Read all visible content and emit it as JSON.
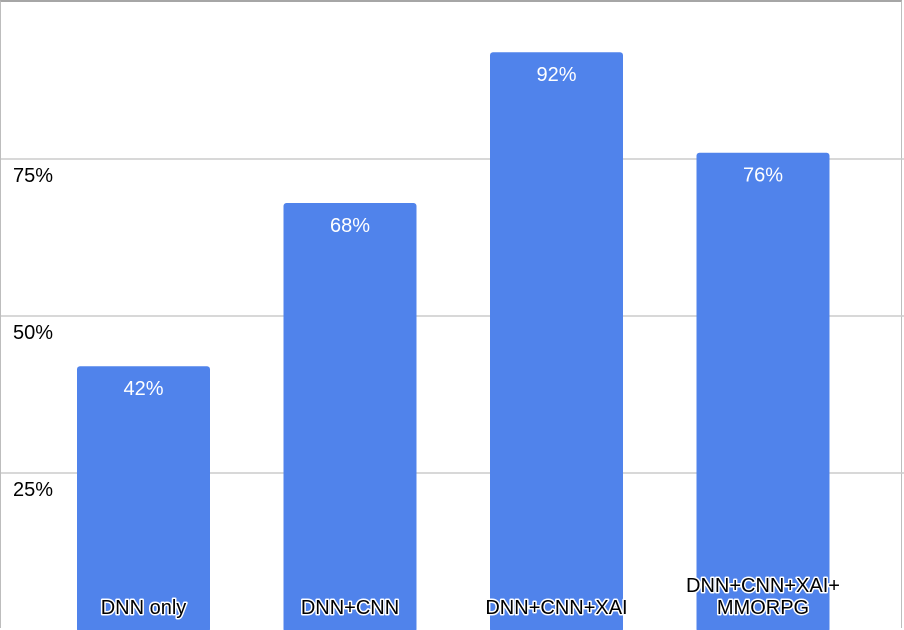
{
  "chart_data": {
    "type": "bar",
    "categories": [
      [
        "DNN only"
      ],
      [
        "DNN+CNN"
      ],
      [
        "DNN+CNN+XAI"
      ],
      [
        "DNN+CNN+XAI+",
        "MMORPG"
      ]
    ],
    "values": [
      42,
      68,
      92,
      76
    ],
    "data_labels": [
      "42%",
      "68%",
      "92%",
      "76%"
    ],
    "yticks": [
      {
        "value": 25,
        "label": "25%"
      },
      {
        "value": 50,
        "label": "50%"
      },
      {
        "value": 75,
        "label": "75%"
      }
    ],
    "ylim": [
      0,
      100
    ],
    "grid": true,
    "bar_color": "#5083eb",
    "grid_color": "#cccccc"
  }
}
